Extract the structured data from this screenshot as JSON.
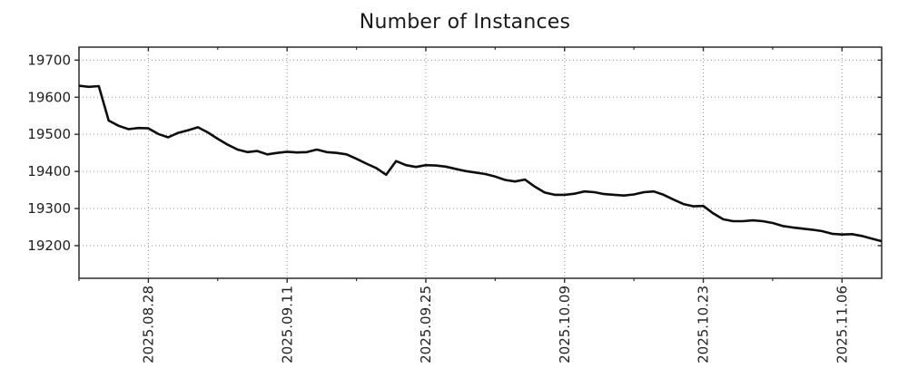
{
  "chart_data": {
    "type": "line",
    "title": "Number of Instances",
    "xlabel": "",
    "ylabel": "",
    "legend": null,
    "grid": {
      "visible": true,
      "style": "dotted",
      "color": "#9a9a9a"
    },
    "line_color": "#0d0d0d",
    "background_color": "#ffffff",
    "ylim": [
      19112,
      19735
    ],
    "y_ticks": [
      19200,
      19300,
      19400,
      19500,
      19600,
      19700
    ],
    "x_tick_labels": [
      "2025.08.28",
      "2025.09.11",
      "2025.09.25",
      "2025.10.09",
      "2025.10.23",
      "2025.11.06"
    ],
    "x_tick_indices": [
      7,
      21,
      35,
      49,
      63,
      77
    ],
    "x_minor_tick_indices": [
      0,
      14,
      28,
      42,
      56,
      70
    ],
    "x": [
      "2025.08.21",
      "2025.08.22",
      "2025.08.23",
      "2025.08.24",
      "2025.08.25",
      "2025.08.26",
      "2025.08.27",
      "2025.08.28",
      "2025.08.29",
      "2025.08.30",
      "2025.08.31",
      "2025.09.01",
      "2025.09.02",
      "2025.09.03",
      "2025.09.04",
      "2025.09.05",
      "2025.09.06",
      "2025.09.07",
      "2025.09.08",
      "2025.09.09",
      "2025.09.10",
      "2025.09.11",
      "2025.09.12",
      "2025.09.13",
      "2025.09.14",
      "2025.09.15",
      "2025.09.16",
      "2025.09.17",
      "2025.09.18",
      "2025.09.19",
      "2025.09.20",
      "2025.09.21",
      "2025.09.22",
      "2025.09.23",
      "2025.09.24",
      "2025.09.25",
      "2025.09.26",
      "2025.09.27",
      "2025.09.28",
      "2025.09.29",
      "2025.09.30",
      "2025.10.01",
      "2025.10.02",
      "2025.10.03",
      "2025.10.04",
      "2025.10.05",
      "2025.10.06",
      "2025.10.07",
      "2025.10.08",
      "2025.10.09",
      "2025.10.10",
      "2025.10.11",
      "2025.10.12",
      "2025.10.13",
      "2025.10.14",
      "2025.10.15",
      "2025.10.16",
      "2025.10.17",
      "2025.10.18",
      "2025.10.19",
      "2025.10.20",
      "2025.10.21",
      "2025.10.22",
      "2025.10.23",
      "2025.10.24",
      "2025.10.25",
      "2025.10.26",
      "2025.10.27",
      "2025.10.28",
      "2025.10.29",
      "2025.10.30",
      "2025.10.31",
      "2025.11.01",
      "2025.11.02",
      "2025.11.03",
      "2025.11.04",
      "2025.11.05",
      "2025.11.06",
      "2025.11.07",
      "2025.11.08",
      "2025.11.09",
      "2025.11.10"
    ],
    "values": [
      19631,
      19628,
      19630,
      19537,
      19523,
      19514,
      19517,
      19516,
      19501,
      19492,
      19504,
      19511,
      19519,
      19505,
      19488,
      19472,
      19459,
      19452,
      19455,
      19446,
      19450,
      19453,
      19451,
      19452,
      19459,
      19452,
      19450,
      19446,
      19434,
      19421,
      19409,
      19391,
      19428,
      19417,
      19412,
      19417,
      19416,
      19413,
      19407,
      19401,
      19397,
      19393,
      19386,
      19377,
      19373,
      19378,
      19359,
      19343,
      19337,
      19337,
      19340,
      19346,
      19344,
      19339,
      19337,
      19335,
      19338,
      19344,
      19346,
      19337,
      19324,
      19312,
      19306,
      19307,
      19287,
      19271,
      19266,
      19266,
      19268,
      19266,
      19261,
      19253,
      19249,
      19246,
      19243,
      19239,
      19232,
      19230,
      19231,
      19226,
      19219,
      19212
    ]
  }
}
